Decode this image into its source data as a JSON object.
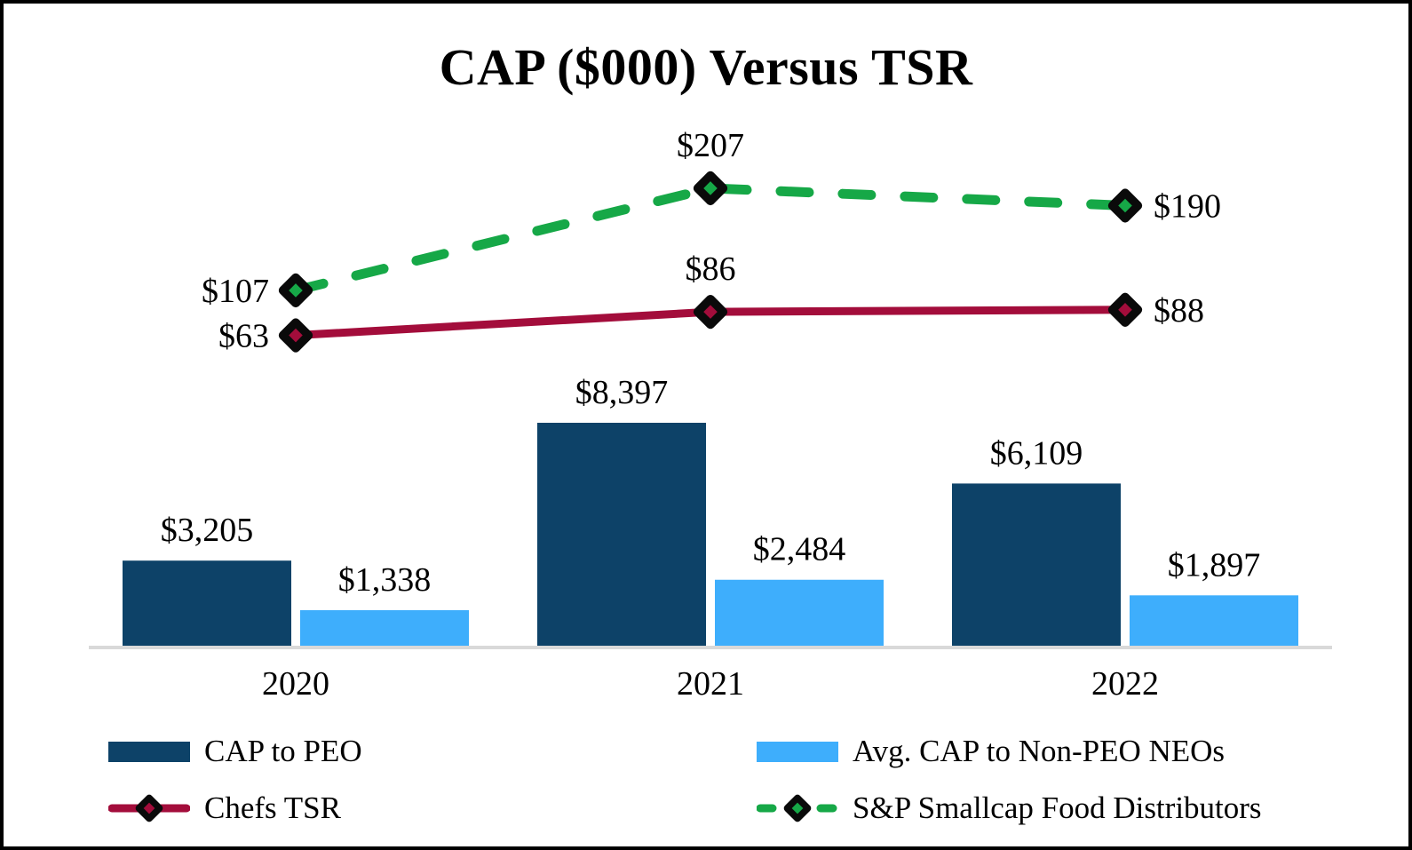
{
  "title": "CAP ($000) Versus TSR",
  "colors": {
    "cap_peo": "#0D4268",
    "cap_non_peo": "#3EAEFC",
    "chefs_tsr": "#A30D3B",
    "sp_food": "#16A847",
    "axis": "#D9D9D9",
    "text": "#000000",
    "marker_outline": "#0A0A0A"
  },
  "chart_data": {
    "type": "bar+line",
    "title": "CAP ($000) Versus TSR",
    "categories": [
      "2020",
      "2021",
      "2022"
    ],
    "bar_series": [
      {
        "name": "CAP to PEO",
        "color_key": "cap_peo",
        "values": [
          3205,
          8397,
          6109
        ],
        "labels": [
          "$3,205",
          "$8,397",
          "$6,109"
        ]
      },
      {
        "name": "Avg. CAP to Non-PEO NEOs",
        "color_key": "cap_non_peo",
        "values": [
          1338,
          2484,
          1897
        ],
        "labels": [
          "$1,338",
          "$2,484",
          "$1,897"
        ]
      }
    ],
    "line_series": [
      {
        "name": "S&P Smallcap Food Distributors",
        "color_key": "sp_food",
        "style": "dashed",
        "values": [
          107,
          207,
          190
        ],
        "labels": [
          "$107",
          "$207",
          "$190"
        ],
        "label_positions": [
          "left",
          "above",
          "right"
        ]
      },
      {
        "name": "Chefs TSR",
        "color_key": "chefs_tsr",
        "style": "solid",
        "values": [
          63,
          86,
          88
        ],
        "labels": [
          "$63",
          "$86",
          "$88"
        ],
        "label_positions": [
          "left",
          "above",
          "right"
        ]
      }
    ],
    "bar_axis_implied_max": 9000,
    "line_axis_implied_range": [
      0,
      250
    ],
    "grid": "off",
    "legend_position": "bottom-two-columns"
  },
  "legend": {
    "cap_peo": "CAP to PEO",
    "cap_non_peo": "Avg. CAP to Non-PEO NEOs",
    "chefs_tsr": "Chefs TSR",
    "sp_food": "S&P Smallcap Food Distributors"
  }
}
